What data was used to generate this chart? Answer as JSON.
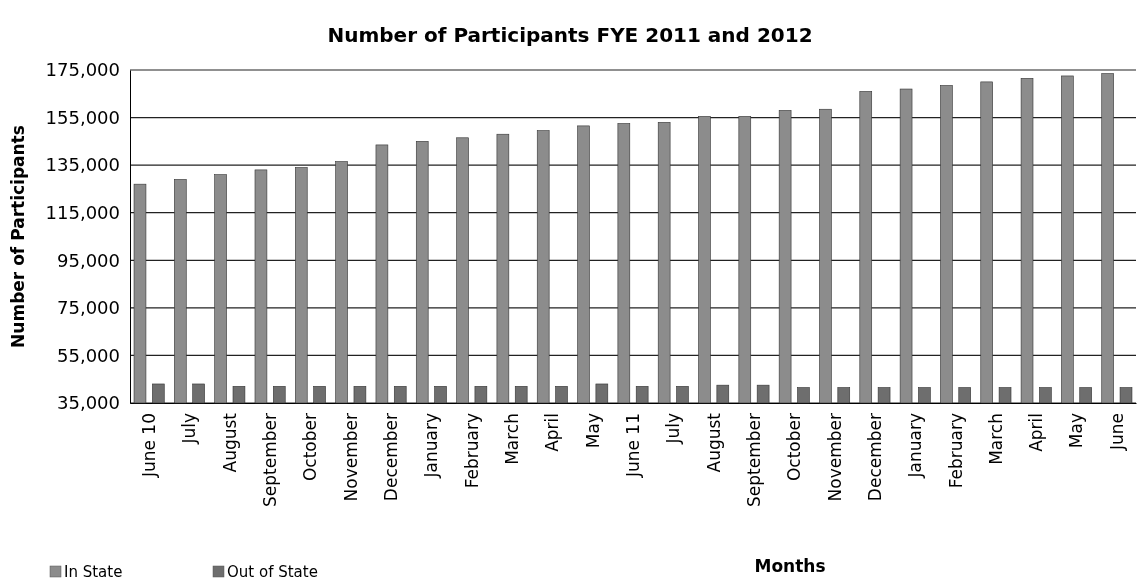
{
  "chart_data": {
    "type": "bar",
    "title": "Number of Participants FYE 2011 and 2012",
    "xlabel": "Months",
    "ylabel": "Number of Participants",
    "categories": [
      "June 10",
      "July",
      "August",
      "September",
      "October",
      "November",
      "December",
      "January",
      "February",
      "March",
      "April",
      "May",
      "June 11",
      "July",
      "August",
      "September",
      "October",
      "November",
      "December",
      "January",
      "February",
      "March",
      "April",
      "May",
      "June"
    ],
    "series": [
      {
        "name": "In State",
        "color": "#8c8c8c",
        "values": [
          127000,
          129000,
          131000,
          133000,
          134000,
          136500,
          143500,
          145000,
          146500,
          148000,
          149500,
          151500,
          152500,
          153000,
          155500,
          155500,
          158000,
          158500,
          166000,
          167000,
          168500,
          170000,
          171500,
          172500,
          173500
        ]
      },
      {
        "name": "Out of State",
        "color": "#6e6e6e",
        "values": [
          43000,
          43000,
          42000,
          42000,
          42000,
          42000,
          42000,
          42000,
          42000,
          42000,
          42000,
          43000,
          42000,
          42000,
          42500,
          42500,
          41500,
          41500,
          41500,
          41500,
          41500,
          41500,
          41500,
          41500,
          41500
        ]
      }
    ],
    "ylim": [
      35000,
      175000
    ],
    "yticks": [
      {
        "value": 35000,
        "label": "35,000"
      },
      {
        "value": 55000,
        "label": "55,000"
      },
      {
        "value": 75000,
        "label": "75,000"
      },
      {
        "value": 95000,
        "label": "95,000"
      },
      {
        "value": 115000,
        "label": "115,000"
      },
      {
        "value": 135000,
        "label": "135,000"
      },
      {
        "value": 155000,
        "label": "155,000"
      },
      {
        "value": 175000,
        "label": "175,000"
      }
    ],
    "grid": "y",
    "legend": "bottom left"
  }
}
